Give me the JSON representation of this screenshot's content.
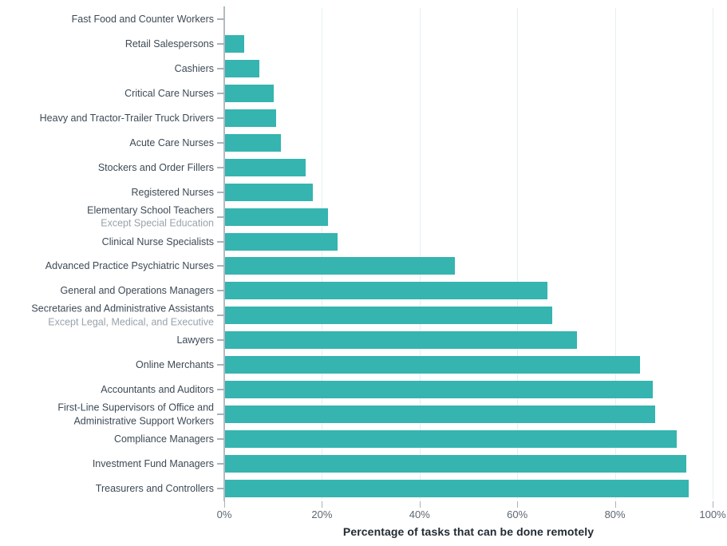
{
  "chart_data": {
    "type": "bar",
    "orientation": "horizontal",
    "title": "",
    "xlabel": "Percentage of tasks that can be done remotely",
    "ylabel": "",
    "xlim": [
      0,
      100
    ],
    "grid": "vertical-light",
    "legend": "none",
    "x_tick_values": [
      0,
      20,
      40,
      60,
      80,
      100
    ],
    "x_tick_labels": [
      "0%",
      "20%",
      "40%",
      "60%",
      "80%",
      "100%"
    ],
    "bar_color": "#35b4b0",
    "rows": [
      {
        "label": "Fast Food and Counter Workers",
        "sublabel": "",
        "sublabel_muted": false,
        "value": 0
      },
      {
        "label": "Retail Salespersons",
        "sublabel": "",
        "sublabel_muted": false,
        "value": 4
      },
      {
        "label": "Cashiers",
        "sublabel": "",
        "sublabel_muted": false,
        "value": 7
      },
      {
        "label": "Critical Care Nurses",
        "sublabel": "",
        "sublabel_muted": false,
        "value": 10
      },
      {
        "label": "Heavy and Tractor-Trailer Truck Drivers",
        "sublabel": "",
        "sublabel_muted": false,
        "value": 10.5
      },
      {
        "label": "Acute Care Nurses",
        "sublabel": "",
        "sublabel_muted": false,
        "value": 11.5
      },
      {
        "label": "Stockers and Order Fillers",
        "sublabel": "",
        "sublabel_muted": false,
        "value": 16.5
      },
      {
        "label": "Registered Nurses",
        "sublabel": "",
        "sublabel_muted": false,
        "value": 18
      },
      {
        "label": "Elementary School Teachers",
        "sublabel": "Except Special Education",
        "sublabel_muted": true,
        "value": 21
      },
      {
        "label": "Clinical Nurse Specialists",
        "sublabel": "",
        "sublabel_muted": false,
        "value": 23
      },
      {
        "label": "Advanced Practice Psychiatric Nurses",
        "sublabel": "",
        "sublabel_muted": false,
        "value": 47
      },
      {
        "label": "General and Operations Managers",
        "sublabel": "",
        "sublabel_muted": false,
        "value": 66
      },
      {
        "label": "Secretaries and Administrative Assistants",
        "sublabel": "Except Legal, Medical, and Executive",
        "sublabel_muted": true,
        "value": 67
      },
      {
        "label": "Lawyers",
        "sublabel": "",
        "sublabel_muted": false,
        "value": 72
      },
      {
        "label": "Online Merchants",
        "sublabel": "",
        "sublabel_muted": false,
        "value": 85
      },
      {
        "label": "Accountants and Auditors",
        "sublabel": "",
        "sublabel_muted": false,
        "value": 87.5
      },
      {
        "label": "First-Line Supervisors of Office and",
        "sublabel": "Administrative Support Workers",
        "sublabel_muted": false,
        "value": 88
      },
      {
        "label": "Compliance Managers",
        "sublabel": "",
        "sublabel_muted": false,
        "value": 92.5
      },
      {
        "label": "Investment Fund Managers",
        "sublabel": "",
        "sublabel_muted": false,
        "value": 94.5
      },
      {
        "label": "Treasurers and Controllers",
        "sublabel": "",
        "sublabel_muted": false,
        "value": 95
      }
    ],
    "colors": {
      "bar": "#35b4b0",
      "category_label": "#3d4a55",
      "category_sublabel_muted": "#99a3ab",
      "axis_tick_label": "#5d6770",
      "axis_title": "#222b32",
      "axis_line": "#b2bbc1",
      "gridline": "#e4eff0"
    }
  }
}
